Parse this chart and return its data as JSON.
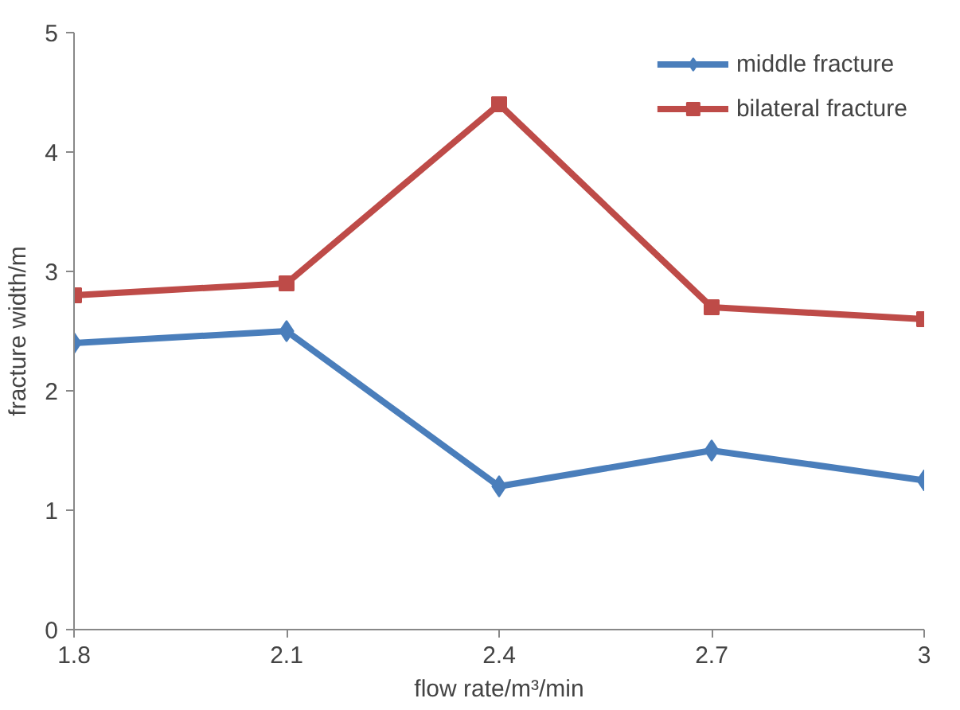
{
  "chart_data": {
    "type": "line",
    "xlabel": "flow rate/m³/min",
    "ylabel": "fracture width/m",
    "x": [
      1.8,
      2.1,
      2.4,
      2.7,
      3
    ],
    "xlim": [
      1.8,
      3
    ],
    "xticks": [
      1.8,
      2.1,
      2.4,
      2.7,
      3
    ],
    "ylim": [
      0,
      5
    ],
    "yticks": [
      0,
      1,
      2,
      3,
      4,
      5
    ],
    "grid": false,
    "legend": "top right",
    "line_style": "solid",
    "series": [
      {
        "name": "middle fracture",
        "color": "#4a7ebb",
        "marker": "diamond",
        "values": [
          2.4,
          2.5,
          1.2,
          1.5,
          1.25
        ]
      },
      {
        "name": "bilateral fracture",
        "color": "#be4b48",
        "marker": "square",
        "values": [
          2.8,
          2.9,
          4.4,
          2.7,
          2.6
        ]
      }
    ]
  }
}
